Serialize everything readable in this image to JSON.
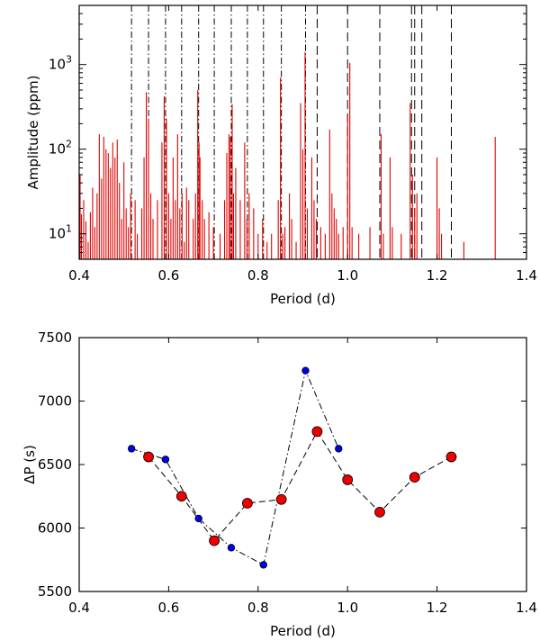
{
  "chart_data": [
    {
      "type": "bar",
      "subtype": "periodogram-stick",
      "xlabel": "Period (d)",
      "ylabel": "Amplitude (ppm)",
      "xlim": [
        0.4,
        1.4
      ],
      "ylim": [
        5,
        5000
      ],
      "yscale": "log",
      "xticks": [
        0.4,
        0.6,
        0.8,
        1.0,
        1.2,
        1.4
      ],
      "xtick_labels": [
        "0.4",
        "0.6",
        "0.8",
        "1.0",
        "1.2",
        "1.4"
      ],
      "yticks": [
        10,
        100,
        1000
      ],
      "ytick_labels": [
        "10^1",
        "10^2",
        "10^3"
      ],
      "line_color": "#e00000",
      "peaks": [
        {
          "x": 0.402,
          "y": 50
        },
        {
          "x": 0.405,
          "y": 17
        },
        {
          "x": 0.41,
          "y": 25
        },
        {
          "x": 0.415,
          "y": 14
        },
        {
          "x": 0.42,
          "y": 8
        },
        {
          "x": 0.425,
          "y": 18
        },
        {
          "x": 0.43,
          "y": 35
        },
        {
          "x": 0.435,
          "y": 12
        },
        {
          "x": 0.44,
          "y": 30
        },
        {
          "x": 0.445,
          "y": 150
        },
        {
          "x": 0.45,
          "y": 45
        },
        {
          "x": 0.455,
          "y": 140
        },
        {
          "x": 0.46,
          "y": 100
        },
        {
          "x": 0.465,
          "y": 90
        },
        {
          "x": 0.47,
          "y": 60
        },
        {
          "x": 0.475,
          "y": 120
        },
        {
          "x": 0.48,
          "y": 80
        },
        {
          "x": 0.485,
          "y": 130
        },
        {
          "x": 0.49,
          "y": 40
        },
        {
          "x": 0.495,
          "y": 15
        },
        {
          "x": 0.5,
          "y": 70
        },
        {
          "x": 0.505,
          "y": 20
        },
        {
          "x": 0.51,
          "y": 12
        },
        {
          "x": 0.515,
          "y": 30
        },
        {
          "x": 0.525,
          "y": 25
        },
        {
          "x": 0.53,
          "y": 10
        },
        {
          "x": 0.54,
          "y": 20
        },
        {
          "x": 0.545,
          "y": 80
        },
        {
          "x": 0.55,
          "y": 470
        },
        {
          "x": 0.555,
          "y": 230
        },
        {
          "x": 0.56,
          "y": 30
        },
        {
          "x": 0.565,
          "y": 15
        },
        {
          "x": 0.575,
          "y": 25
        },
        {
          "x": 0.585,
          "y": 120
        },
        {
          "x": 0.59,
          "y": 420
        },
        {
          "x": 0.595,
          "y": 230
        },
        {
          "x": 0.6,
          "y": 30
        },
        {
          "x": 0.605,
          "y": 15
        },
        {
          "x": 0.61,
          "y": 80
        },
        {
          "x": 0.615,
          "y": 25
        },
        {
          "x": 0.62,
          "y": 150
        },
        {
          "x": 0.625,
          "y": 20
        },
        {
          "x": 0.63,
          "y": 30
        },
        {
          "x": 0.635,
          "y": 8
        },
        {
          "x": 0.64,
          "y": 35
        },
        {
          "x": 0.645,
          "y": 25
        },
        {
          "x": 0.655,
          "y": 15
        },
        {
          "x": 0.66,
          "y": 30
        },
        {
          "x": 0.665,
          "y": 500
        },
        {
          "x": 0.668,
          "y": 120
        },
        {
          "x": 0.67,
          "y": 80
        },
        {
          "x": 0.675,
          "y": 25
        },
        {
          "x": 0.68,
          "y": 15
        },
        {
          "x": 0.69,
          "y": 18
        },
        {
          "x": 0.7,
          "y": 12
        },
        {
          "x": 0.715,
          "y": 10
        },
        {
          "x": 0.725,
          "y": 25
        },
        {
          "x": 0.73,
          "y": 90
        },
        {
          "x": 0.735,
          "y": 150
        },
        {
          "x": 0.738,
          "y": 140
        },
        {
          "x": 0.742,
          "y": 340
        },
        {
          "x": 0.745,
          "y": 30
        },
        {
          "x": 0.75,
          "y": 60
        },
        {
          "x": 0.76,
          "y": 25
        },
        {
          "x": 0.77,
          "y": 120
        },
        {
          "x": 0.775,
          "y": 15
        },
        {
          "x": 0.78,
          "y": 30
        },
        {
          "x": 0.79,
          "y": 20
        },
        {
          "x": 0.8,
          "y": 10
        },
        {
          "x": 0.81,
          "y": 15
        },
        {
          "x": 0.82,
          "y": 8
        },
        {
          "x": 0.83,
          "y": 10
        },
        {
          "x": 0.845,
          "y": 25
        },
        {
          "x": 0.85,
          "y": 700
        },
        {
          "x": 0.855,
          "y": 10
        },
        {
          "x": 0.86,
          "y": 12
        },
        {
          "x": 0.87,
          "y": 30
        },
        {
          "x": 0.875,
          "y": 15
        },
        {
          "x": 0.885,
          "y": 8
        },
        {
          "x": 0.895,
          "y": 350
        },
        {
          "x": 0.9,
          "y": 100
        },
        {
          "x": 0.905,
          "y": 1400
        },
        {
          "x": 0.91,
          "y": 20
        },
        {
          "x": 0.92,
          "y": 80
        },
        {
          "x": 0.925,
          "y": 25
        },
        {
          "x": 0.93,
          "y": 15
        },
        {
          "x": 0.94,
          "y": 12
        },
        {
          "x": 0.95,
          "y": 10
        },
        {
          "x": 0.96,
          "y": 170
        },
        {
          "x": 0.965,
          "y": 30
        },
        {
          "x": 0.97,
          "y": 20
        },
        {
          "x": 0.975,
          "y": 15
        },
        {
          "x": 0.98,
          "y": 10
        },
        {
          "x": 0.99,
          "y": 12
        },
        {
          "x": 1.0,
          "y": 250
        },
        {
          "x": 1.005,
          "y": 1050
        },
        {
          "x": 1.01,
          "y": 12
        },
        {
          "x": 1.025,
          "y": 10
        },
        {
          "x": 1.05,
          "y": 12
        },
        {
          "x": 1.075,
          "y": 150
        },
        {
          "x": 1.08,
          "y": 10
        },
        {
          "x": 1.095,
          "y": 80
        },
        {
          "x": 1.1,
          "y": 12
        },
        {
          "x": 1.12,
          "y": 10
        },
        {
          "x": 1.14,
          "y": 350
        },
        {
          "x": 1.145,
          "y": 50
        },
        {
          "x": 1.15,
          "y": 20
        },
        {
          "x": 1.155,
          "y": 30
        },
        {
          "x": 1.2,
          "y": 80
        },
        {
          "x": 1.205,
          "y": 20
        },
        {
          "x": 1.21,
          "y": 10
        },
        {
          "x": 1.26,
          "y": 8
        },
        {
          "x": 1.33,
          "y": 140
        }
      ],
      "vlines_dashdot": [
        0.517,
        0.555,
        0.593,
        0.629,
        0.667,
        0.702,
        0.74,
        0.776,
        0.812,
        0.852,
        0.906
      ],
      "vlines_dashed": [
        0.932,
        1.0,
        1.072,
        1.143,
        1.15,
        1.166,
        1.232
      ],
      "vline_color": "#000000"
    },
    {
      "type": "scatter",
      "subtype": "line-with-markers",
      "xlabel": "Period (d)",
      "ylabel": "ΔP (s)",
      "xlim": [
        0.4,
        1.4
      ],
      "ylim": [
        5500,
        7500
      ],
      "xticks": [
        0.4,
        0.6,
        0.8,
        1.0,
        1.2,
        1.4
      ],
      "xtick_labels": [
        "0.4",
        "0.6",
        "0.8",
        "1.0",
        "1.2",
        "1.4"
      ],
      "yticks": [
        5500,
        6000,
        6500,
        7000,
        7500
      ],
      "ytick_labels": [
        "5500",
        "6000",
        "6500",
        "7000",
        "7500"
      ],
      "series": [
        {
          "name": "blue (dash-dot)",
          "color": "#0000ee",
          "linestyle": "dashdot",
          "x": [
            0.517,
            0.593,
            0.667,
            0.74,
            0.812,
            0.906,
            0.98
          ],
          "y": [
            6625,
            6540,
            6075,
            5845,
            5710,
            7240,
            6625
          ]
        },
        {
          "name": "red (dashed)",
          "color": "#ee0000",
          "linestyle": "dashed",
          "x": [
            0.555,
            0.629,
            0.702,
            0.776,
            0.852,
            0.932,
            1.0,
            1.072,
            1.15,
            1.232
          ],
          "y": [
            6560,
            6250,
            5900,
            6195,
            6225,
            6760,
            6380,
            6125,
            6400,
            6560
          ]
        }
      ]
    }
  ]
}
